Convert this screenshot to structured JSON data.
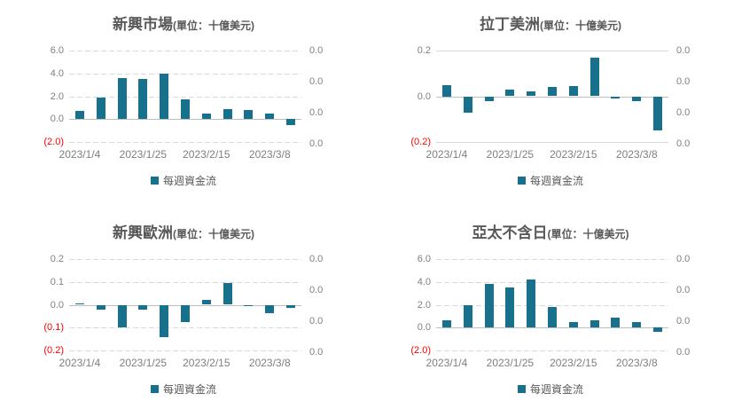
{
  "colors": {
    "bar": "#17718c",
    "grid": "#d9d9d9",
    "zero_line": "#bfbfbf",
    "axis_text": "#7f7f7f",
    "negative_text": "#ff0000",
    "title_text": "#595959",
    "legend_text": "#595959"
  },
  "chart_data": [
    {
      "type": "bar",
      "title": "新興市場",
      "subtitle": "(單位：十億美元)",
      "legend": "每週資金流",
      "ylim": [
        -2.0,
        6.0
      ],
      "grid_dashed": true,
      "left_axis": [
        {
          "label": "6.0",
          "value": 6.0
        },
        {
          "label": "4.0",
          "value": 4.0
        },
        {
          "label": "2.0",
          "value": 2.0
        },
        {
          "label": "0.0",
          "value": 0.0
        },
        {
          "label": "(2.0)",
          "value": -2.0
        }
      ],
      "right_axis": [
        "0.0",
        "0.0",
        "0.0",
        "0.0"
      ],
      "x_labels": [
        {
          "label": "2023/1/4",
          "bar_index": 0
        },
        {
          "label": "2023/1/25",
          "bar_index": 3
        },
        {
          "label": "2023/2/15",
          "bar_index": 6
        },
        {
          "label": "2023/3/8",
          "bar_index": 9
        }
      ],
      "values": [
        0.7,
        1.9,
        3.6,
        3.5,
        4.0,
        1.7,
        0.5,
        0.9,
        0.8,
        0.45,
        -0.5
      ]
    },
    {
      "type": "bar",
      "title": "拉丁美洲",
      "subtitle": "(單位：十億美元)",
      "legend": "每週資金流",
      "ylim": [
        -0.2,
        0.2
      ],
      "grid_dashed": false,
      "left_axis": [
        {
          "label": "0.2",
          "value": 0.2
        },
        {
          "label": "0.0",
          "value": 0.0
        },
        {
          "label": "(0.2)",
          "value": -0.2
        }
      ],
      "right_axis": [
        "0.0",
        "0.0",
        "0.0",
        "0.0"
      ],
      "x_labels": [
        {
          "label": "2023/1/4",
          "bar_index": 0
        },
        {
          "label": "2023/1/25",
          "bar_index": 3
        },
        {
          "label": "2023/2/15",
          "bar_index": 6
        },
        {
          "label": "2023/3/8",
          "bar_index": 9
        }
      ],
      "values": [
        0.05,
        -0.07,
        -0.02,
        0.03,
        0.02,
        0.04,
        0.045,
        0.17,
        -0.01,
        -0.02,
        -0.15
      ]
    },
    {
      "type": "bar",
      "title": "新興歐洲",
      "subtitle": "(單位：十億美元)",
      "legend": "每週資金流",
      "ylim": [
        -0.2,
        0.2
      ],
      "grid_dashed": true,
      "left_axis": [
        {
          "label": "0.2",
          "value": 0.2
        },
        {
          "label": "0.1",
          "value": 0.1
        },
        {
          "label": "0.0",
          "value": 0.0
        },
        {
          "label": "(0.1)",
          "value": -0.1
        },
        {
          "label": "(0.2)",
          "value": -0.2
        }
      ],
      "right_axis": [
        "0.0",
        "0.0",
        "0.0",
        "0.0"
      ],
      "x_labels": [
        {
          "label": "2023/1/4",
          "bar_index": 0
        },
        {
          "label": "2023/1/25",
          "bar_index": 3
        },
        {
          "label": "2023/2/15",
          "bar_index": 6
        },
        {
          "label": "2023/3/8",
          "bar_index": 9
        }
      ],
      "values": [
        0.005,
        -0.02,
        -0.1,
        -0.02,
        -0.14,
        -0.075,
        0.02,
        0.095,
        -0.005,
        -0.035,
        -0.015
      ]
    },
    {
      "type": "bar",
      "title": "亞太不含日",
      "subtitle": "(單位：十億美元)",
      "legend": "每週資金流",
      "ylim": [
        -2.0,
        6.0
      ],
      "grid_dashed": true,
      "left_axis": [
        {
          "label": "6.0",
          "value": 6.0
        },
        {
          "label": "4.0",
          "value": 4.0
        },
        {
          "label": "2.0",
          "value": 2.0
        },
        {
          "label": "0.0",
          "value": 0.0
        },
        {
          "label": "(2.0)",
          "value": -2.0
        }
      ],
      "right_axis": [
        "0.0",
        "0.0",
        "0.0",
        "0.0"
      ],
      "x_labels": [
        {
          "label": "2023/1/4",
          "bar_index": 0
        },
        {
          "label": "2023/1/25",
          "bar_index": 3
        },
        {
          "label": "2023/2/15",
          "bar_index": 6
        },
        {
          "label": "2023/3/8",
          "bar_index": 9
        }
      ],
      "values": [
        0.65,
        2.0,
        3.8,
        3.55,
        4.2,
        1.8,
        0.45,
        0.65,
        0.85,
        0.45,
        -0.4
      ]
    }
  ]
}
